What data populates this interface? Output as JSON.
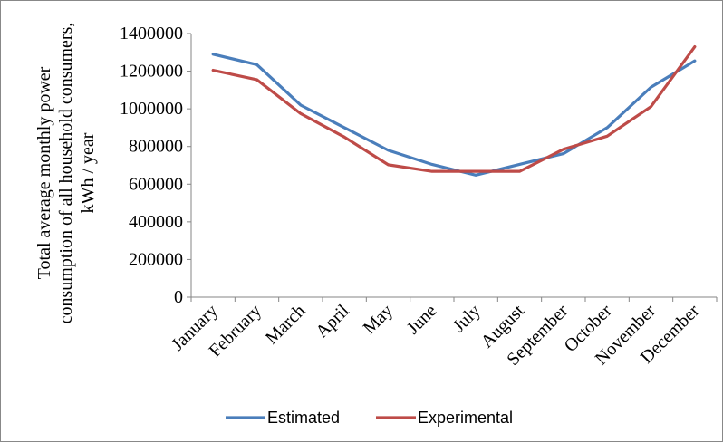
{
  "chart_data": {
    "type": "line",
    "title": "",
    "xlabel": "",
    "ylabel_lines": [
      "Total average monthly power",
      "consumption of all household consumers,",
      "kWh / year"
    ],
    "categories": [
      "January",
      "February",
      "March",
      "April",
      "May",
      "June",
      "July",
      "August",
      "September",
      "October",
      "November",
      "December"
    ],
    "ylim": [
      0,
      1400000
    ],
    "yticks": [
      "0",
      "200000",
      "400000",
      "600000",
      "800000",
      "1000000",
      "1200000",
      "1400000"
    ],
    "grid": false,
    "legend_position": "bottom",
    "series": [
      {
        "name": "Estimated",
        "color": "#4a7ebb",
        "values": [
          1290000,
          1235000,
          1020000,
          900000,
          780000,
          705000,
          648000,
          705000,
          762000,
          900000,
          1115000,
          1255000
        ]
      },
      {
        "name": "Experimental",
        "color": "#be4b48",
        "values": [
          1205000,
          1155000,
          975000,
          850000,
          703000,
          668000,
          668000,
          668000,
          785000,
          855000,
          1012000,
          1330000
        ]
      }
    ]
  }
}
